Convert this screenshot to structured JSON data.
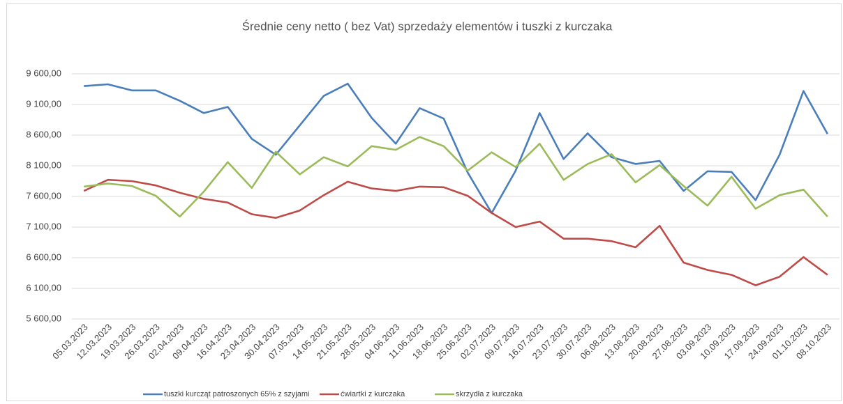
{
  "chart_data": {
    "type": "line",
    "title": "Średnie ceny netto ( bez Vat) sprzedaży elementów i tuszki z kurczaka",
    "categories": [
      "05.03.2023",
      "12.03.2023",
      "19.03.2023",
      "26.03.2023",
      "02.04.2023",
      "09.04.2023",
      "16.04.2023",
      "23.04.2023",
      "30.04.2023",
      "07.05.2023",
      "14.05.2023",
      "21.05.2023",
      "28.05.2023",
      "04.06.2023",
      "11.06.2023",
      "18.06.2023",
      "25.06.2023",
      "02.07.2023",
      "09.07.2023",
      "16.07.2023",
      "23.07.2023",
      "30.07.2023",
      "06.08.2023",
      "13.08.2023",
      "20.08.2023",
      "27.08.2023",
      "03.09.2023",
      "10.09.2023",
      "17.09.2023",
      "24.09.2023",
      "01.10.2023",
      "08.10.2023"
    ],
    "series": [
      {
        "name": "tuszki kurcząt patroszonych 65% z szyjami",
        "color": "#4a7ebb",
        "values": [
          9400,
          9430,
          9330,
          9330,
          9160,
          8960,
          9060,
          8540,
          8280,
          8760,
          9240,
          9440,
          8880,
          8460,
          9040,
          8870,
          7990,
          7330,
          8020,
          8960,
          8210,
          8630,
          8240,
          8130,
          8180,
          7690,
          8010,
          8000,
          7540,
          8280,
          9320,
          8620
        ]
      },
      {
        "name": "ćwiartki z kurczaka",
        "color": "#be4b48",
        "values": [
          7690,
          7870,
          7850,
          7780,
          7660,
          7560,
          7500,
          7310,
          7250,
          7370,
          7620,
          7840,
          7730,
          7690,
          7760,
          7750,
          7610,
          7330,
          7100,
          7190,
          6910,
          6910,
          6870,
          6770,
          7120,
          6520,
          6400,
          6320,
          6150,
          6290,
          6610,
          6320
        ]
      },
      {
        "name": "skrzydła z kurczaka",
        "color": "#9bbb59",
        "values": [
          7760,
          7810,
          7770,
          7610,
          7270,
          7680,
          8160,
          7740,
          8330,
          7960,
          8240,
          8090,
          8420,
          8360,
          8570,
          8420,
          8020,
          8320,
          8080,
          8460,
          7870,
          8130,
          8290,
          7830,
          8110,
          7770,
          7450,
          7920,
          7400,
          7620,
          7710,
          7270
        ]
      }
    ],
    "ylim": [
      5600,
      9600
    ],
    "yticks": [
      {
        "value": 5600,
        "label": "5 600,00"
      },
      {
        "value": 6100,
        "label": "6 100,00"
      },
      {
        "value": 6600,
        "label": "6 600,00"
      },
      {
        "value": 7100,
        "label": "7 100,00"
      },
      {
        "value": 7600,
        "label": "7 600,00"
      },
      {
        "value": 8100,
        "label": "8 100,00"
      },
      {
        "value": 8600,
        "label": "8 600,00"
      },
      {
        "value": 9100,
        "label": "9 100,00"
      },
      {
        "value": 9600,
        "label": "9 600,00"
      }
    ],
    "grid": true
  }
}
